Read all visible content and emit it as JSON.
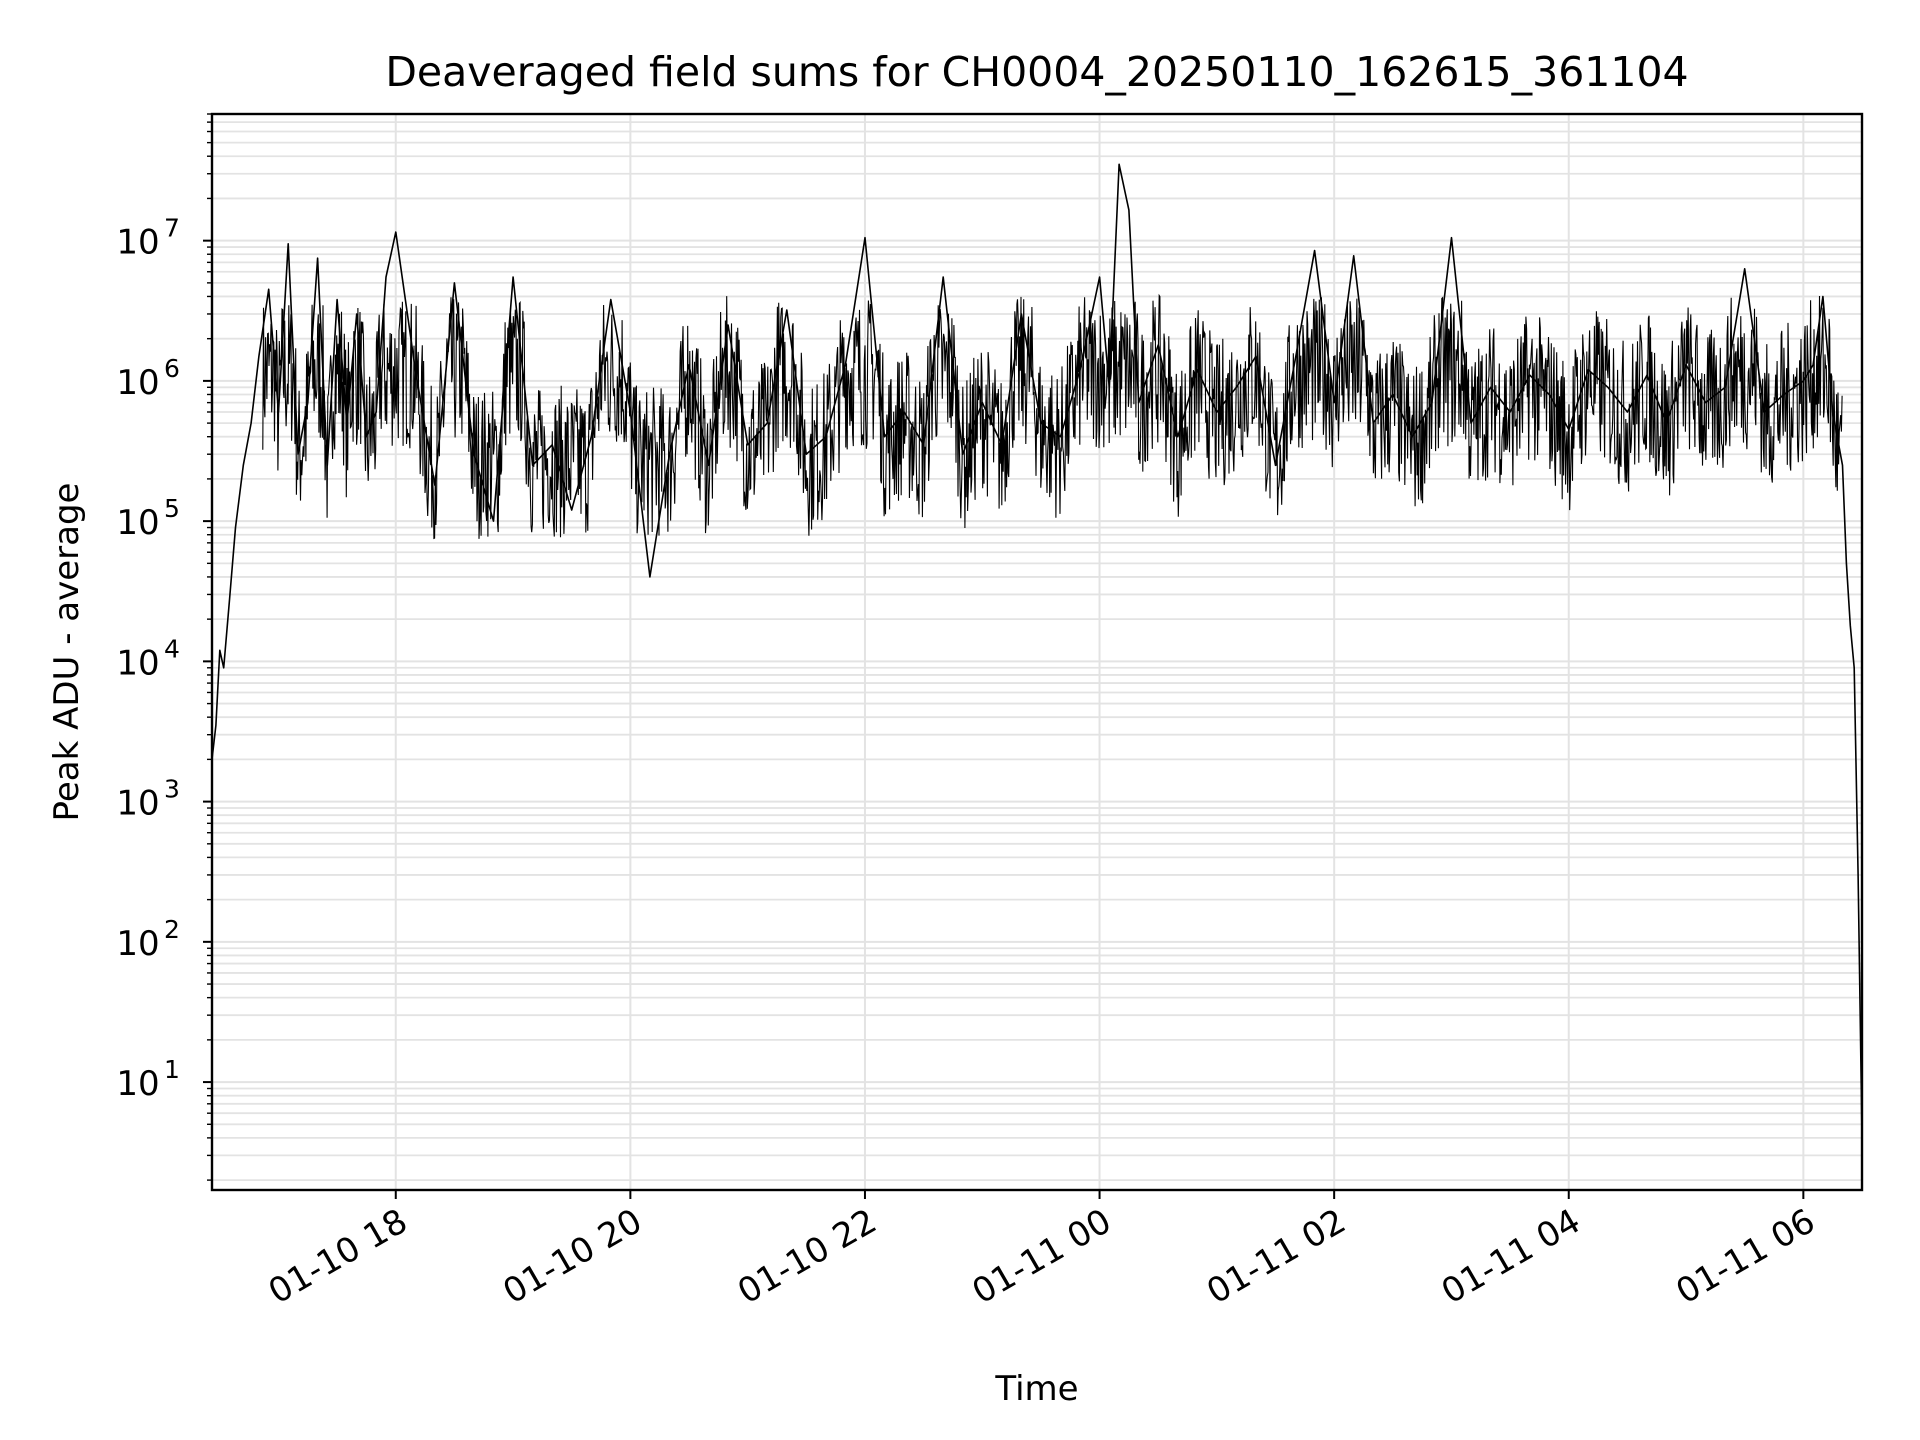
{
  "chart_data": {
    "type": "line",
    "title": "Deaveraged field sums for CH0004_20250110_162615_361104",
    "xlabel": "Time",
    "ylabel": "Peak ADU - average",
    "yscale": "log",
    "ylim": [
      1.7,
      80000000
    ],
    "xlim": [
      "01-10 16:26",
      "01-11 06:30"
    ],
    "grid": true,
    "line_color": "#000000",
    "grid_color": "#e3e3e3",
    "x_ticks": [
      {
        "label": "01-10 18",
        "value": "01-10 18:00"
      },
      {
        "label": "01-10 20",
        "value": "01-10 20:00"
      },
      {
        "label": "01-10 22",
        "value": "01-10 22:00"
      },
      {
        "label": "01-11 00",
        "value": "01-11 00:00"
      },
      {
        "label": "01-11 02",
        "value": "01-11 02:00"
      },
      {
        "label": "01-11 04",
        "value": "01-11 04:00"
      },
      {
        "label": "01-11 06",
        "value": "01-11 06:00"
      }
    ],
    "y_ticks": [
      {
        "base": "10",
        "exp": "1",
        "value": 10
      },
      {
        "base": "10",
        "exp": "2",
        "value": 100
      },
      {
        "base": "10",
        "exp": "3",
        "value": 1000
      },
      {
        "base": "10",
        "exp": "4",
        "value": 10000
      },
      {
        "base": "10",
        "exp": "5",
        "value": 100000
      },
      {
        "base": "10",
        "exp": "6",
        "value": 1000000
      },
      {
        "base": "10",
        "exp": "7",
        "value": 10000000
      }
    ],
    "series": [
      {
        "x": [
          "01-10 16:26",
          "01-10 16:28",
          "01-10 16:30",
          "01-10 16:32",
          "01-10 16:35",
          "01-10 16:38",
          "01-10 16:42",
          "01-10 16:46",
          "01-10 16:50",
          "01-10 16:55",
          "01-10 17:00",
          "01-10 17:05",
          "01-10 17:10",
          "01-10 17:15",
          "01-10 17:20",
          "01-10 17:25",
          "01-10 17:30",
          "01-10 17:35",
          "01-10 17:40",
          "01-10 17:45",
          "01-10 17:50",
          "01-10 17:55",
          "01-10 18:00",
          "01-10 18:10",
          "01-10 18:20",
          "01-10 18:30",
          "01-10 18:40",
          "01-10 18:50",
          "01-10 19:00",
          "01-10 19:10",
          "01-10 19:20",
          "01-10 19:30",
          "01-10 19:40",
          "01-10 19:50",
          "01-10 20:00",
          "01-10 20:10",
          "01-10 20:20",
          "01-10 20:30",
          "01-10 20:40",
          "01-10 20:50",
          "01-10 21:00",
          "01-10 21:10",
          "01-10 21:20",
          "01-10 21:30",
          "01-10 21:40",
          "01-10 21:50",
          "01-10 22:00",
          "01-10 22:10",
          "01-10 22:20",
          "01-10 22:30",
          "01-10 22:40",
          "01-10 22:50",
          "01-10 23:00",
          "01-10 23:10",
          "01-10 23:20",
          "01-10 23:30",
          "01-10 23:40",
          "01-10 23:50",
          "01-11 00:00",
          "01-11 00:05",
          "01-11 00:10",
          "01-11 00:15",
          "01-11 00:20",
          "01-11 00:30",
          "01-11 00:40",
          "01-11 00:50",
          "01-11 01:00",
          "01-11 01:10",
          "01-11 01:20",
          "01-11 01:30",
          "01-11 01:40",
          "01-11 01:50",
          "01-11 02:00",
          "01-11 02:10",
          "01-11 02:20",
          "01-11 02:30",
          "01-11 02:40",
          "01-11 02:50",
          "01-11 03:00",
          "01-11 03:10",
          "01-11 03:20",
          "01-11 03:30",
          "01-11 03:40",
          "01-11 03:50",
          "01-11 04:00",
          "01-11 04:10",
          "01-11 04:20",
          "01-11 04:30",
          "01-11 04:40",
          "01-11 04:50",
          "01-11 05:00",
          "01-11 05:10",
          "01-11 05:20",
          "01-11 05:30",
          "01-11 05:40",
          "01-11 05:50",
          "01-11 06:00",
          "01-11 06:05",
          "01-11 06:10",
          "01-11 06:15",
          "01-11 06:20",
          "01-11 06:22",
          "01-11 06:24",
          "01-11 06:26",
          "01-11 06:28",
          "01-11 06:30"
        ],
        "values": [
          2000,
          3500,
          12000,
          9000,
          28000,
          90000,
          250000,
          500000,
          1500000,
          4500000,
          600000,
          9500000,
          300000,
          700000,
          7500000,
          250000,
          3800000,
          500000,
          3000000,
          400000,
          600000,
          5500000,
          11500000,
          1200000,
          180000,
          5000000,
          300000,
          100000,
          5500000,
          250000,
          350000,
          120000,
          400000,
          3800000,
          600000,
          40000,
          300000,
          1300000,
          250000,
          2500000,
          350000,
          500000,
          3200000,
          300000,
          400000,
          1300000,
          10500000,
          400000,
          600000,
          350000,
          5500000,
          300000,
          700000,
          350000,
          3000000,
          500000,
          400000,
          1200000,
          5500000,
          900000,
          35000000,
          16500000,
          700000,
          1800000,
          400000,
          1200000,
          600000,
          900000,
          1500000,
          250000,
          1400000,
          8500000,
          700000,
          7800000,
          500000,
          800000,
          400000,
          700000,
          10500000,
          500000,
          900000,
          600000,
          1100000,
          800000,
          450000,
          1200000,
          900000,
          600000,
          1100000,
          500000,
          1300000,
          700000,
          900000,
          6300000,
          600000,
          800000,
          1000000,
          1300000,
          4000000,
          600000,
          250000,
          50000,
          18000,
          9000,
          300,
          4
        ]
      }
    ]
  }
}
